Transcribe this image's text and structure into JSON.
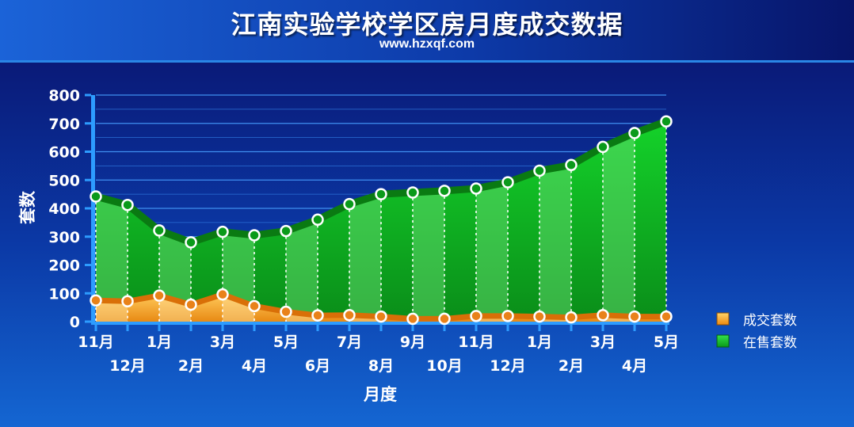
{
  "header": {
    "title": "江南实验学校学区房月度成交数据",
    "subtitle": "www.hzxqf.com"
  },
  "colors": {
    "sale_fill": "#19c32e",
    "sale_line": "#0a7a12",
    "deal_fill": "#f3a42a",
    "deal_line": "#d96f07",
    "grid": "#2f7fe6",
    "axis": "#3aa0ff",
    "text": "#ffffff"
  },
  "chart_data": {
    "type": "area",
    "xlabel": "月度",
    "ylabel": "套数",
    "ylim": [
      0,
      800
    ],
    "yticks": [
      0,
      100,
      200,
      300,
      400,
      500,
      600,
      700,
      800
    ],
    "grid": true,
    "legend_position": "right",
    "categories": [
      "11月",
      "12月",
      "1月",
      "2月",
      "3月",
      "4月",
      "5月",
      "6月",
      "7月",
      "8月",
      "9月",
      "10月",
      "11月",
      "12月",
      "1月",
      "2月",
      "3月",
      "4月",
      "5月"
    ],
    "series": [
      {
        "name": "成交套数",
        "values": [
          75,
          72,
          92,
          60,
          96,
          55,
          35,
          22,
          23,
          18,
          10,
          10,
          20,
          20,
          18,
          15,
          23,
          18,
          18
        ]
      },
      {
        "name": "在售套数",
        "values": [
          442,
          412,
          322,
          280,
          317,
          305,
          320,
          360,
          415,
          450,
          456,
          462,
          470,
          492,
          533,
          553,
          617,
          666,
          707
        ]
      }
    ]
  }
}
